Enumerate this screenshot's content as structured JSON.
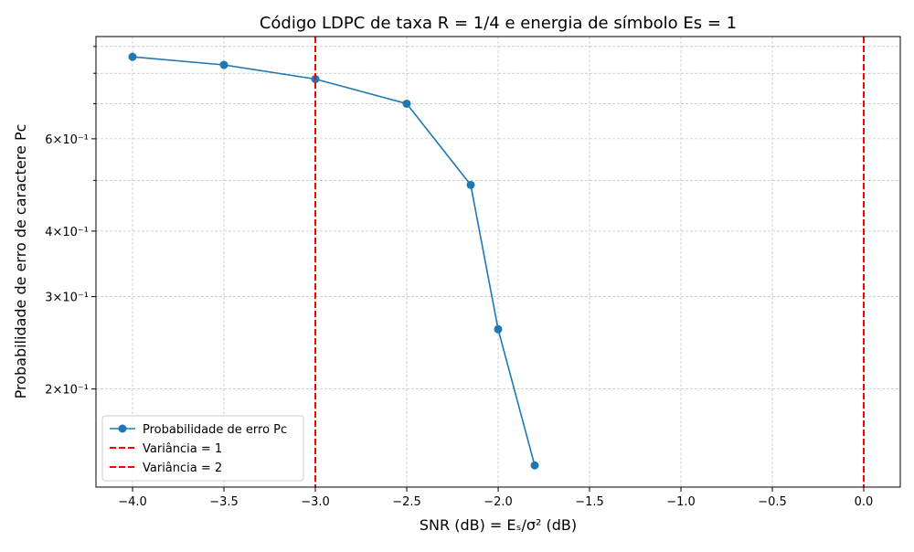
{
  "chart_data": {
    "type": "line",
    "title": "Código LDPC de taxa R = 1/4 e energia de símbolo Es = 1",
    "xlabel": "SNR (dB) = Eₛ/σ² (dB)",
    "ylabel": "Probabilidade de erro de caractere Pc",
    "x": [
      -4.0,
      -3.5,
      -3.0,
      -2.5,
      -2.15,
      -2.0,
      -1.8
    ],
    "series": [
      {
        "name": "Probabilidade de erro Pc",
        "color": "#1f77b4",
        "values": [
          0.86,
          0.83,
          0.78,
          0.7,
          0.49,
          0.26,
          0.143
        ]
      }
    ],
    "vlines": [
      {
        "name": "Variância = 1",
        "color": "#ff0000",
        "x": -3.0
      },
      {
        "name": "Variância = 2",
        "color": "#ff0000",
        "x": 0.0
      }
    ],
    "xlim": [
      -4.2,
      0.2
    ],
    "xticks": [
      {
        "value": -4.0,
        "label": "−4.0"
      },
      {
        "value": -3.5,
        "label": "−3.5"
      },
      {
        "value": -3.0,
        "label": "−3.0"
      },
      {
        "value": -2.5,
        "label": "−2.5"
      },
      {
        "value": -2.0,
        "label": "−2.0"
      },
      {
        "value": -1.5,
        "label": "−1.5"
      },
      {
        "value": -1.0,
        "label": "−1.0"
      },
      {
        "value": -0.5,
        "label": "−0.5"
      },
      {
        "value": 0.0,
        "label": "0.0"
      }
    ],
    "ylim": [
      0.13,
      0.94
    ],
    "yscale": "log",
    "yticks": [
      {
        "value": 0.2,
        "label": "2×10⁻¹"
      },
      {
        "value": 0.3,
        "label": "3×10⁻¹"
      },
      {
        "value": 0.4,
        "label": "4×10⁻¹"
      },
      {
        "value": 0.6,
        "label": "6×10⁻¹"
      }
    ],
    "yticks_minor": [
      0.5,
      0.7,
      0.8,
      0.9
    ],
    "grid": true,
    "legend": "lower left"
  }
}
